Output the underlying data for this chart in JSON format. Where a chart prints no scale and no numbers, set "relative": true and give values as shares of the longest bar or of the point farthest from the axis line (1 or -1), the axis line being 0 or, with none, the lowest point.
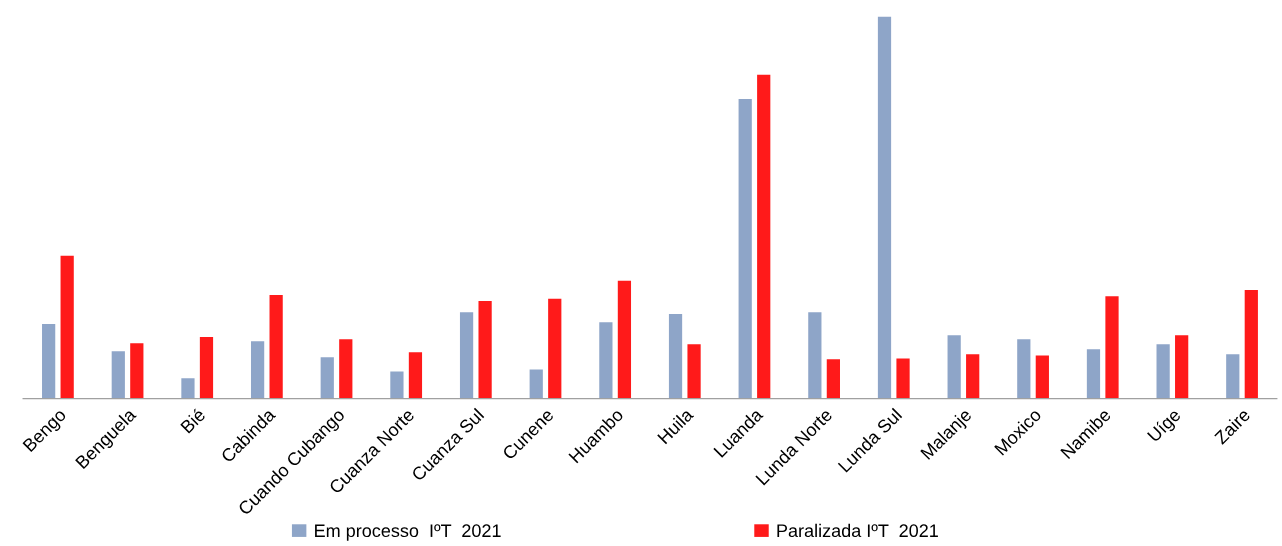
{
  "chart_data": {
    "type": "bar",
    "relative": true,
    "categories": [
      "Bengo",
      "Benguela",
      "Bié",
      "Cabinda",
      "Cuando Cubango",
      "Cuanza Norte",
      "Cuanza Sul",
      "Cunene",
      "Huambo",
      "Huila",
      "Luanda",
      "Lunda Norte",
      "Lunda Sul",
      "Malanje",
      "Moxico",
      "Namibe",
      "Uíge",
      "Zaire"
    ],
    "series": [
      {
        "name": "Em processo  IºT  2021",
        "color": "#8ea5c8",
        "values": [
          0.195,
          0.124,
          0.053,
          0.15,
          0.108,
          0.071,
          0.226,
          0.076,
          0.2,
          0.221,
          0.784,
          0.226,
          1,
          0.166,
          0.155,
          0.129,
          0.142,
          0.116
        ]
      },
      {
        "name": "Paralizada IºT  2021",
        "color": "#ff1a1a",
        "values": [
          0.374,
          0.145,
          0.161,
          0.271,
          0.155,
          0.121,
          0.255,
          0.261,
          0.308,
          0.142,
          0.847,
          0.103,
          0.105,
          0.116,
          0.113,
          0.268,
          0.166,
          0.284
        ]
      }
    ],
    "legend": "bottom",
    "grid": false
  }
}
